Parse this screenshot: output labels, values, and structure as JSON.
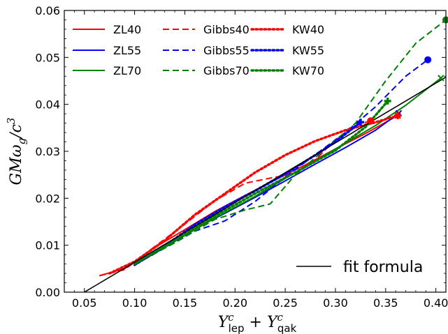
{
  "chart_data": {
    "type": "line",
    "xlabel": "Y^c_lep + Y^c_qak",
    "xlabel_parts": {
      "base1": "Y",
      "sup1": "c",
      "sub1": "lep",
      "op": "+",
      "base2": "Y",
      "sup2": "c",
      "sub2": "qak"
    },
    "ylabel": "GMω_g/c^3",
    "ylabel_parts": {
      "main": "GMω",
      "sub": "g",
      "slash": "/c",
      "sup": "3"
    },
    "xlim": [
      0.03,
      0.41
    ],
    "ylim": [
      0.0,
      0.06
    ],
    "xticks": [
      0.05,
      0.1,
      0.15,
      0.2,
      0.25,
      0.3,
      0.35,
      0.4
    ],
    "xtick_labels": [
      "0.05",
      "0.10",
      "0.15",
      "0.20",
      "0.25",
      "0.30",
      "0.35",
      "0.40"
    ],
    "yticks": [
      0.0,
      0.01,
      0.02,
      0.03,
      0.04,
      0.05,
      0.06
    ],
    "ytick_labels": [
      "0.00",
      "0.01",
      "0.02",
      "0.03",
      "0.04",
      "0.05",
      "0.06"
    ],
    "grid": false,
    "legend_placement": "top-left",
    "fit_legend_placement": "bottom-right",
    "series": [
      {
        "name": "ZL40",
        "color": "#ff0000",
        "dash": "solid",
        "marker": "cross",
        "x": [
          0.065,
          0.09,
          0.12,
          0.15,
          0.18,
          0.21,
          0.24,
          0.27,
          0.3,
          0.33,
          0.362
        ],
        "y": [
          0.0035,
          0.005,
          0.0095,
          0.0133,
          0.0172,
          0.0206,
          0.0239,
          0.0271,
          0.0305,
          0.0338,
          0.0376
        ]
      },
      {
        "name": "ZL55",
        "color": "#0000ff",
        "dash": "solid",
        "marker": "cross",
        "x": [
          0.1,
          0.13,
          0.16,
          0.19,
          0.22,
          0.25,
          0.28,
          0.31,
          0.34,
          0.363
        ],
        "y": [
          0.0058,
          0.0095,
          0.0135,
          0.0168,
          0.0202,
          0.0237,
          0.0273,
          0.0308,
          0.0345,
          0.0381
        ]
      },
      {
        "name": "ZL70",
        "color": "#008000",
        "dash": "solid",
        "marker": "cross",
        "x": [
          0.1,
          0.14,
          0.18,
          0.22,
          0.26,
          0.3,
          0.34,
          0.37,
          0.405
        ],
        "y": [
          0.006,
          0.0108,
          0.0158,
          0.0204,
          0.0255,
          0.0305,
          0.0355,
          0.0398,
          0.0456
        ]
      },
      {
        "name": "Gibbs40",
        "color": "#ff0000",
        "dash": "dashed",
        "marker": "circle",
        "x": [
          0.065,
          0.09,
          0.12,
          0.15,
          0.18,
          0.21,
          0.24,
          0.26,
          0.28,
          0.3,
          0.32,
          0.335
        ],
        "y": [
          0.0035,
          0.0048,
          0.0097,
          0.0145,
          0.0195,
          0.0232,
          0.0245,
          0.025,
          0.0282,
          0.0325,
          0.0355,
          0.0365
        ]
      },
      {
        "name": "Gibbs55",
        "color": "#0000ff",
        "dash": "dashed",
        "marker": "circle",
        "x": [
          0.1,
          0.13,
          0.16,
          0.19,
          0.22,
          0.25,
          0.28,
          0.31,
          0.34,
          0.37,
          0.392
        ],
        "y": [
          0.0058,
          0.0094,
          0.013,
          0.0152,
          0.0193,
          0.0245,
          0.0293,
          0.034,
          0.0395,
          0.046,
          0.0495
        ]
      },
      {
        "name": "Gibbs70",
        "color": "#008000",
        "dash": "dashed",
        "marker": "circle",
        "x": [
          0.1,
          0.14,
          0.18,
          0.21,
          0.235,
          0.26,
          0.29,
          0.32,
          0.35,
          0.38,
          0.41
        ],
        "y": [
          0.006,
          0.0105,
          0.0155,
          0.0175,
          0.0188,
          0.025,
          0.0305,
          0.036,
          0.045,
          0.053,
          0.058
        ]
      },
      {
        "name": "KW40",
        "color": "#ff0000",
        "dash": "dotted",
        "marker": "plus",
        "x": [
          0.075,
          0.1,
          0.13,
          0.16,
          0.19,
          0.22,
          0.25,
          0.28,
          0.31,
          0.34,
          0.362
        ],
        "y": [
          0.004,
          0.0065,
          0.011,
          0.0165,
          0.021,
          0.0255,
          0.0292,
          0.0322,
          0.0345,
          0.0362,
          0.0376
        ]
      },
      {
        "name": "KW55",
        "color": "#0000ff",
        "dash": "dotted",
        "marker": "plus",
        "x": [
          0.1,
          0.13,
          0.16,
          0.19,
          0.22,
          0.25,
          0.28,
          0.3,
          0.325
        ],
        "y": [
          0.0058,
          0.0098,
          0.0144,
          0.0182,
          0.0216,
          0.0252,
          0.0292,
          0.032,
          0.0362
        ]
      },
      {
        "name": "KW70",
        "color": "#008000",
        "dash": "dotted",
        "marker": "plus",
        "x": [
          0.1,
          0.14,
          0.18,
          0.22,
          0.26,
          0.3,
          0.33,
          0.352
        ],
        "y": [
          0.006,
          0.011,
          0.0162,
          0.021,
          0.0255,
          0.0302,
          0.0352,
          0.0407
        ]
      },
      {
        "name": "fit formula",
        "color": "#000000",
        "dash": "solid",
        "marker": "none",
        "x": [
          0.05,
          0.41
        ],
        "y": [
          0.0,
          0.0458
        ]
      }
    ]
  }
}
